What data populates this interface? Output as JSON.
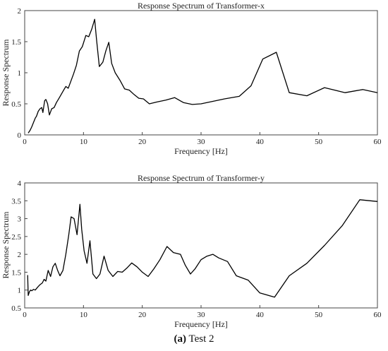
{
  "chart_data": [
    {
      "type": "line",
      "title": "Response Spectrum of Transformer-x",
      "xlabel": "Frequency [Hz]",
      "ylabel": "Response Spectrum",
      "xlim": [
        0,
        60
      ],
      "ylim": [
        0,
        2
      ],
      "xticks": [
        0,
        10,
        20,
        30,
        40,
        50,
        60
      ],
      "yticks": [
        0,
        0.5,
        1,
        1.5,
        2
      ],
      "ytick_labels": [
        "0",
        "0.5",
        "1",
        "1.5",
        "2"
      ],
      "grid": false,
      "line_color": "#000000",
      "series": [
        {
          "x": [
            0.6,
            0.9,
            1.2,
            1.5,
            1.8,
            2.0,
            2.3,
            2.6,
            2.9,
            3.1,
            3.4,
            3.6,
            3.9,
            4.2,
            4.6,
            5.0,
            5.4,
            5.9,
            6.5,
            7.0,
            7.4,
            7.8,
            8.3,
            8.8,
            9.3,
            9.8,
            10.4,
            10.9,
            11.4,
            11.9,
            12.2,
            12.7,
            13.3,
            13.8,
            14.3,
            14.8,
            15.4,
            16.2,
            17.0,
            17.8,
            18.6,
            19.4,
            20.2,
            21.2,
            22.5,
            24.0,
            25.5,
            27.0,
            28.5,
            30.0,
            32.0,
            34.0,
            36.5,
            38.5,
            40.5,
            42.8,
            45.0,
            48.0,
            51.0,
            54.5,
            57.5,
            60.0
          ],
          "y": [
            0.03,
            0.07,
            0.13,
            0.2,
            0.27,
            0.3,
            0.38,
            0.42,
            0.44,
            0.36,
            0.55,
            0.57,
            0.5,
            0.32,
            0.42,
            0.44,
            0.52,
            0.6,
            0.7,
            0.78,
            0.75,
            0.85,
            0.98,
            1.12,
            1.35,
            1.42,
            1.6,
            1.58,
            1.7,
            1.86,
            1.55,
            1.1,
            1.17,
            1.35,
            1.49,
            1.15,
            1.0,
            0.88,
            0.74,
            0.72,
            0.65,
            0.59,
            0.58,
            0.5,
            0.53,
            0.56,
            0.6,
            0.52,
            0.49,
            0.5,
            0.54,
            0.58,
            0.62,
            0.79,
            1.22,
            1.33,
            0.68,
            0.63,
            0.76,
            0.68,
            0.73,
            0.68
          ]
        }
      ]
    },
    {
      "type": "line",
      "title": "Response Spectrum of Transformer-y",
      "xlabel": "Frequency [Hz]",
      "ylabel": "Response Spectrum",
      "xlim": [
        0,
        60
      ],
      "ylim": [
        0.5,
        4
      ],
      "xticks": [
        0,
        10,
        20,
        30,
        40,
        50,
        60
      ],
      "yticks": [
        0.5,
        1,
        1.5,
        2,
        2.5,
        3,
        3.5,
        4
      ],
      "ytick_labels": [
        "0.5",
        "1",
        "1.5",
        "2",
        "2.5",
        "3",
        "3.5",
        "4"
      ],
      "grid": false,
      "line_color": "#000000",
      "series": [
        {
          "x": [
            0.5,
            0.6,
            0.8,
            1.0,
            1.2,
            1.5,
            1.8,
            2.2,
            2.6,
            3.0,
            3.3,
            3.6,
            4.0,
            4.4,
            4.8,
            5.2,
            5.6,
            6.0,
            6.5,
            7.0,
            7.5,
            7.9,
            8.4,
            8.9,
            9.4,
            9.7,
            10.1,
            10.6,
            11.1,
            11.6,
            12.2,
            12.8,
            13.5,
            14.2,
            15.0,
            15.8,
            16.6,
            17.4,
            18.2,
            19.1,
            20.0,
            21.0,
            22.0,
            23.0,
            24.2,
            25.3,
            26.5,
            27.3,
            28.2,
            29.0,
            30.0,
            31.0,
            32.0,
            33.0,
            34.5,
            36.0,
            38.0,
            40.0,
            42.5,
            45.0,
            48.0,
            51.0,
            54.0,
            57.0,
            60.0
          ],
          "y": [
            1.42,
            0.85,
            0.95,
            1.0,
            0.98,
            1.02,
            1.0,
            1.08,
            1.15,
            1.2,
            1.3,
            1.25,
            1.55,
            1.38,
            1.65,
            1.75,
            1.55,
            1.4,
            1.55,
            2.0,
            2.55,
            3.05,
            3.0,
            2.55,
            3.4,
            2.7,
            2.1,
            1.75,
            2.38,
            1.45,
            1.32,
            1.45,
            1.95,
            1.55,
            1.38,
            1.52,
            1.5,
            1.62,
            1.76,
            1.65,
            1.5,
            1.38,
            1.6,
            1.85,
            2.22,
            2.05,
            2.0,
            1.7,
            1.45,
            1.6,
            1.85,
            1.95,
            2.0,
            1.9,
            1.8,
            1.4,
            1.28,
            0.92,
            0.8,
            1.4,
            1.75,
            2.25,
            2.8,
            3.53,
            3.48
          ]
        }
      ]
    }
  ],
  "caption": {
    "label": "(a)",
    "text": " Test 2"
  }
}
